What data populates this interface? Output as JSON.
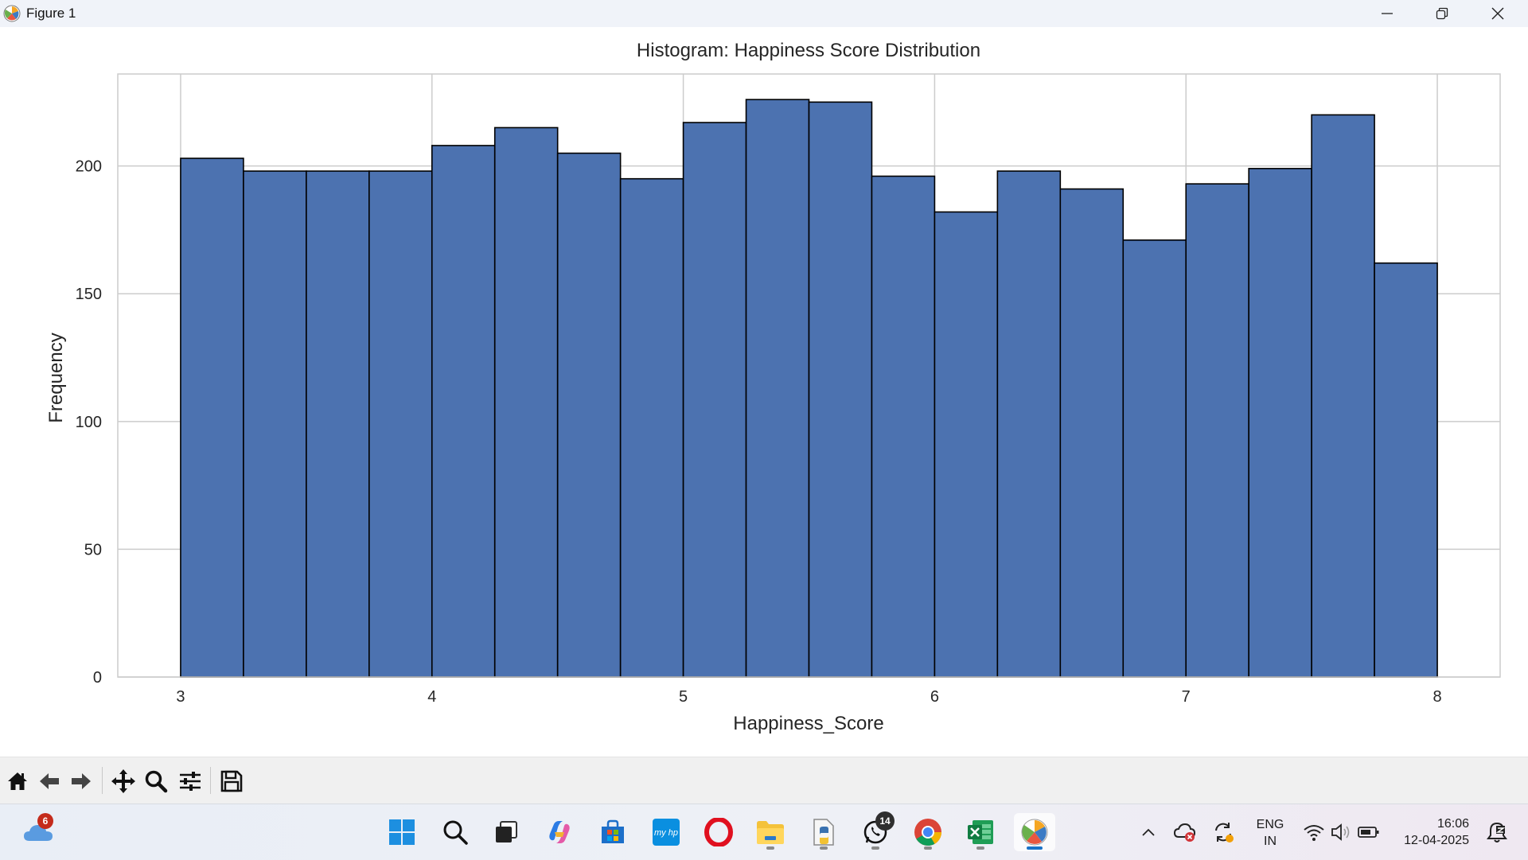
{
  "window": {
    "title": "Figure 1"
  },
  "chart_data": {
    "type": "bar",
    "title": "Histogram: Happiness Score Distribution",
    "xlabel": "Happiness_Score",
    "ylabel": "Frequency",
    "xlim": [
      2.75,
      8.25
    ],
    "ylim": [
      0,
      236
    ],
    "xticks": [
      3,
      4,
      5,
      6,
      7,
      8
    ],
    "yticks": [
      0,
      50,
      100,
      150,
      200
    ],
    "grid": true,
    "bar_color": "#4c72b0",
    "edge_color": "#000000",
    "bin_width": 0.25,
    "bins": [
      3.0,
      3.25,
      3.5,
      3.75,
      4.0,
      4.25,
      4.5,
      4.75,
      5.0,
      5.25,
      5.5,
      5.75,
      6.0,
      6.25,
      6.5,
      6.75,
      7.0,
      7.25,
      7.5,
      7.75
    ],
    "values": [
      203,
      198,
      198,
      198,
      208,
      215,
      205,
      195,
      217,
      226,
      225,
      196,
      182,
      198,
      191,
      171,
      193,
      199,
      220,
      162
    ]
  },
  "toolbar": {
    "tools": [
      "home-icon",
      "back-icon",
      "forward-icon",
      "pan-icon",
      "zoom-icon",
      "configure-subplots-icon",
      "save-icon"
    ]
  },
  "taskbar": {
    "weather_badge": "6",
    "whatsapp_badge": "14",
    "language_primary": "ENG",
    "language_secondary": "IN",
    "time": "16:06",
    "date": "12-04-2025"
  }
}
